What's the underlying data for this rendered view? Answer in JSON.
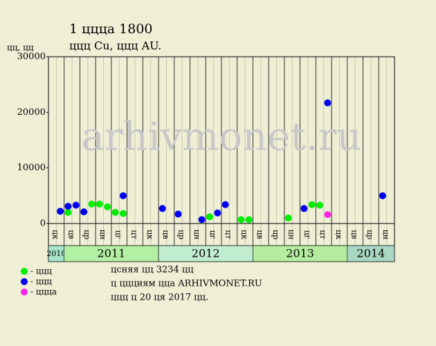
{
  "chart_data": {
    "type": "scatter",
    "title": "1 ццца 1800",
    "subtitle": "ццц Cu, ццц AU.",
    "y_label": "цц, цц",
    "watermark": "arhivmonet.ru",
    "ylim": [
      0,
      30000
    ],
    "yticks": [
      0,
      10000,
      20000,
      30000
    ],
    "categories": [
      null,
      "цк",
      null,
      "цв",
      null,
      "цр",
      null,
      "цн",
      null,
      "цг",
      null,
      "цт",
      null,
      "цк",
      null,
      "цв",
      null,
      "цр",
      null,
      "цн",
      null,
      "цг",
      null,
      "цт",
      null,
      "цк",
      null,
      "цв",
      null,
      "цр",
      null,
      "цн",
      null,
      "цг",
      null,
      "цт",
      null,
      "цк",
      null,
      "цв",
      null,
      "цр",
      null,
      "цн"
    ],
    "years": [
      "2010",
      "2011",
      "2012",
      "2013",
      "2014"
    ],
    "year_colors": [
      "#a8e4cc",
      "#b4f0a4",
      "#c0ecd0",
      "#b4eca0",
      "#a8d8c4"
    ],
    "series": [
      {
        "name": "- ццц",
        "color": "#00ee00",
        "values": [
          null,
          null,
          2000,
          null,
          null,
          3500,
          3500,
          3000,
          2000,
          1800,
          null,
          null,
          null,
          null,
          null,
          null,
          null,
          null,
          null,
          null,
          1200,
          null,
          null,
          null,
          700,
          700,
          null,
          null,
          null,
          null,
          1000,
          null,
          null,
          3400,
          3300,
          null,
          null,
          null,
          null,
          null,
          null,
          null,
          null,
          null
        ]
      },
      {
        "name": "- ццц",
        "color": "#0000ee",
        "values": [
          null,
          2200,
          3100,
          3300,
          2100,
          null,
          null,
          null,
          null,
          5000,
          null,
          null,
          null,
          null,
          2700,
          null,
          1700,
          null,
          null,
          700,
          null,
          1900,
          3400,
          null,
          null,
          null,
          null,
          null,
          null,
          null,
          null,
          null,
          2700,
          null,
          null,
          21700,
          null,
          null,
          null,
          null,
          null,
          null,
          5000,
          null
        ]
      },
      {
        "name": "- цццa",
        "color": "#ff22ee",
        "values": [
          null,
          null,
          null,
          null,
          null,
          null,
          null,
          null,
          null,
          null,
          null,
          null,
          null,
          null,
          null,
          null,
          null,
          null,
          null,
          null,
          null,
          null,
          null,
          null,
          null,
          null,
          null,
          null,
          null,
          null,
          null,
          null,
          null,
          null,
          null,
          1600,
          null,
          null,
          null,
          null,
          null,
          null,
          null,
          null
        ]
      }
    ],
    "notes": [
      "цcняя цц 3234 цц",
      "ц ццциям ццa ARHIVMONET.RU",
      "ццц ц 20 ця 2017 цц."
    ]
  }
}
